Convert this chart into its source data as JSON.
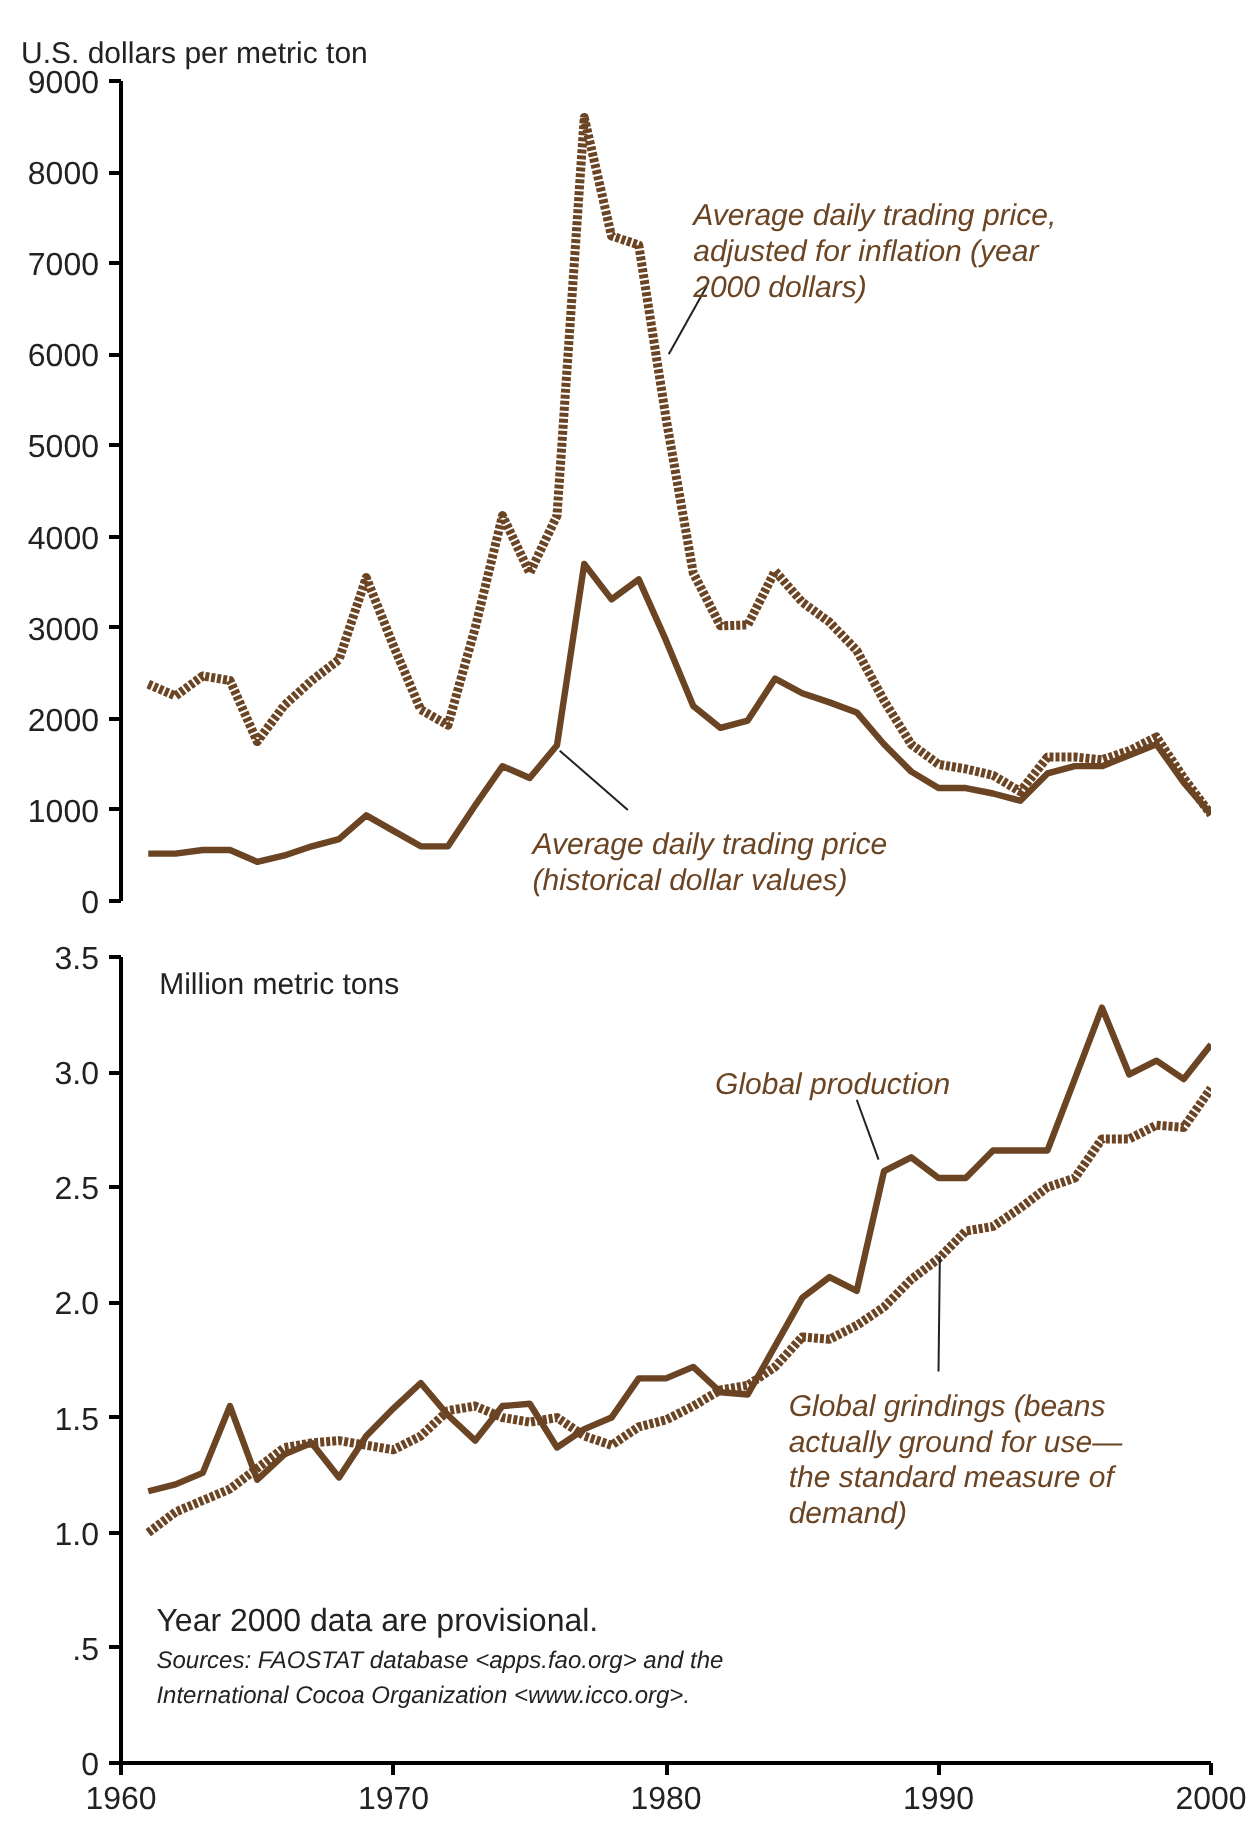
{
  "chart_data": [
    {
      "type": "line",
      "ylabel": "U.S. dollars per metric ton",
      "x": [
        1961,
        1962,
        1963,
        1964,
        1965,
        1966,
        1967,
        1968,
        1969,
        1970,
        1971,
        1972,
        1973,
        1974,
        1975,
        1976,
        1977,
        1978,
        1979,
        1980,
        1981,
        1982,
        1983,
        1984,
        1985,
        1986,
        1987,
        1988,
        1989,
        1990,
        1991,
        1992,
        1993,
        1994,
        1995,
        1996,
        1997,
        1998,
        1999,
        2000
      ],
      "series": [
        {
          "name": "Average daily trading price, adjusted for inflation (year 2000 dollars)",
          "color": "#6b4423",
          "line_style": "dotted",
          "values": [
            2380,
            2250,
            2470,
            2420,
            1750,
            2150,
            2420,
            2650,
            3550,
            2800,
            2100,
            1930,
            3000,
            4230,
            3600,
            4230,
            8600,
            7300,
            7200,
            5300,
            3600,
            3020,
            3030,
            3620,
            3280,
            3060,
            2750,
            2200,
            1720,
            1500,
            1450,
            1380,
            1200,
            1580,
            1580,
            1550,
            1650,
            1800,
            1350,
            950
          ]
        },
        {
          "name": "Average daily trading price (historical dollar values)",
          "color": "#6b4423",
          "line_style": "solid",
          "values": [
            520,
            520,
            560,
            560,
            430,
            500,
            600,
            680,
            940,
            770,
            600,
            600,
            1050,
            1480,
            1350,
            1710,
            3700,
            3310,
            3530,
            2860,
            2140,
            1900,
            1980,
            2440,
            2280,
            2180,
            2070,
            1720,
            1420,
            1240,
            1240,
            1180,
            1100,
            1400,
            1480,
            1480,
            1600,
            1720,
            1300,
            950
          ]
        }
      ],
      "xlim": [
        1960,
        2000
      ],
      "xticks": [
        1960,
        1970,
        1980,
        1990,
        2000
      ],
      "ylim": [
        0,
        9000
      ],
      "yticks": [
        0,
        1000,
        2000,
        3000,
        4000,
        5000,
        6000,
        7000,
        8000,
        9000
      ],
      "tick_labels": "y",
      "grid": false,
      "legend": false
    },
    {
      "type": "line",
      "ylabel": "Million metric tons",
      "x": [
        1961,
        1962,
        1963,
        1964,
        1965,
        1966,
        1967,
        1968,
        1969,
        1970,
        1971,
        1972,
        1973,
        1974,
        1975,
        1976,
        1977,
        1978,
        1979,
        1980,
        1981,
        1982,
        1983,
        1984,
        1985,
        1986,
        1987,
        1988,
        1989,
        1990,
        1991,
        1992,
        1993,
        1994,
        1995,
        1996,
        1997,
        1998,
        1999,
        2000
      ],
      "series": [
        {
          "name": "Global production",
          "color": "#6b4423",
          "line_style": "solid",
          "values": [
            1.18,
            1.21,
            1.26,
            1.55,
            1.23,
            1.34,
            1.39,
            1.24,
            1.42,
            1.54,
            1.65,
            1.51,
            1.4,
            1.55,
            1.56,
            1.37,
            1.45,
            1.5,
            1.67,
            1.67,
            1.72,
            1.61,
            1.6,
            1.81,
            2.02,
            2.11,
            2.05,
            2.57,
            2.63,
            2.54,
            2.54,
            2.66,
            2.66,
            2.66,
            2.97,
            3.28,
            2.99,
            3.05,
            2.97,
            3.12
          ]
        },
        {
          "name": "Global grindings (beans actually ground for use—the standard measure of demand)",
          "color": "#6b4423",
          "line_style": "dotted",
          "values": [
            1.0,
            1.09,
            1.14,
            1.19,
            1.28,
            1.37,
            1.39,
            1.4,
            1.38,
            1.36,
            1.42,
            1.53,
            1.55,
            1.5,
            1.48,
            1.5,
            1.42,
            1.38,
            1.46,
            1.49,
            1.55,
            1.62,
            1.64,
            1.72,
            1.85,
            1.84,
            1.9,
            1.98,
            2.1,
            2.19,
            2.31,
            2.33,
            2.41,
            2.5,
            2.54,
            2.71,
            2.71,
            2.77,
            2.76,
            2.93
          ]
        }
      ],
      "annotations": [
        "Year 2000 data are provisional.",
        "Sources: FAOSTAT database <apps.fao.org> and the International Cocoa Organization <www.icco.org>."
      ],
      "xlim": [
        1960,
        2000
      ],
      "xticks": [
        1960,
        1970,
        1980,
        1990,
        2000
      ],
      "ylim": [
        0,
        3.5
      ],
      "yticks": [
        0,
        {
          "value": 0.5,
          "label": ".5"
        },
        {
          "value": 1.0,
          "label": "1.0"
        },
        {
          "value": 1.5,
          "label": "1.5"
        },
        {
          "value": 2.0,
          "label": "2.0"
        },
        {
          "value": 2.5,
          "label": "2.5"
        },
        {
          "value": 3.0,
          "label": "3.0"
        },
        {
          "value": 3.5,
          "label": "3.5"
        }
      ],
      "grid": false,
      "legend": false
    }
  ]
}
